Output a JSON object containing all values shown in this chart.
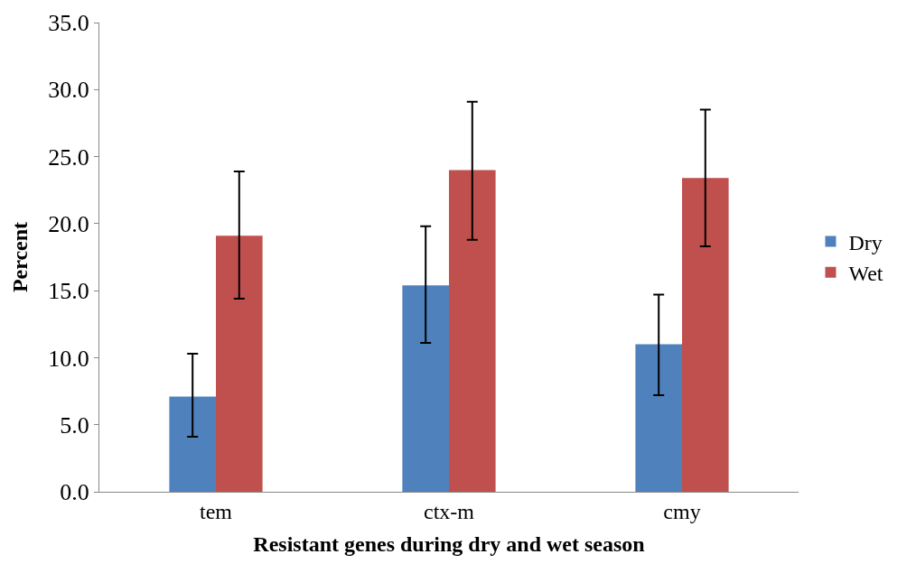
{
  "chart_data": {
    "type": "bar",
    "xlabel": "Resistant genes during dry and wet season",
    "ylabel": "Percent",
    "categories": [
      "tem",
      "ctx-m",
      "cmy"
    ],
    "series": [
      {
        "name": "Dry",
        "color": "#4f81bd",
        "values": [
          7.1,
          15.4,
          11.0
        ],
        "errors": [
          [
            4.1,
            10.3
          ],
          [
            11.1,
            19.8
          ],
          [
            7.2,
            14.7
          ]
        ]
      },
      {
        "name": "Wet",
        "color": "#c0504d",
        "values": [
          19.1,
          24.0,
          23.4
        ],
        "errors": [
          [
            14.4,
            23.9
          ],
          [
            18.8,
            29.1
          ],
          [
            18.3,
            28.5
          ]
        ]
      }
    ],
    "ylim": [
      0,
      35
    ],
    "yticks": [
      {
        "value": 0,
        "label": "0.0"
      },
      {
        "value": 5,
        "label": "5.0"
      },
      {
        "value": 10,
        "label": "10.0"
      },
      {
        "value": 15,
        "label": "15.0"
      },
      {
        "value": 20,
        "label": "20.0"
      },
      {
        "value": 25,
        "label": "25.0"
      },
      {
        "value": 30,
        "label": "30.0"
      },
      {
        "value": 35,
        "label": "35.0"
      }
    ],
    "legend": "right"
  }
}
